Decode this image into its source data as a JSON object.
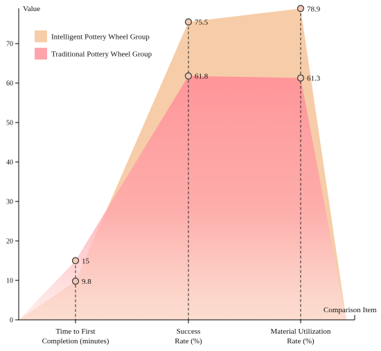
{
  "chart_data": {
    "type": "area",
    "ylabel": "Value",
    "xlabel": "Comparison Item",
    "ylim": [
      0,
      80
    ],
    "yticks": [
      0,
      10,
      20,
      30,
      40,
      50,
      60,
      70
    ],
    "categories": [
      [
        "Time to First",
        "Completion (minutes)"
      ],
      [
        "Success",
        "Rate (%)"
      ],
      [
        "Material Utilization",
        "Rate (%)"
      ]
    ],
    "series": [
      {
        "name": "Intelligent Pottery Wheel Group",
        "values": [
          9.8,
          75.5,
          78.9
        ],
        "color": "#f5c89e"
      },
      {
        "name": "Traditional Pottery Wheel Group",
        "values": [
          15,
          61.8,
          61.3
        ],
        "color": "#ff9aa2"
      }
    ],
    "legend": "top-left",
    "grid": false
  }
}
